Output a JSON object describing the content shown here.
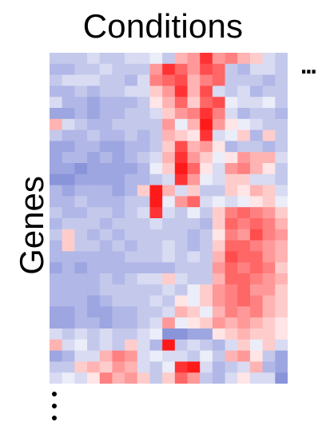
{
  "chart_data": {
    "type": "heatmap",
    "title": "Conditions",
    "xlabel": "",
    "ylabel": "Genes",
    "x_continuation": "...",
    "y_continuation": "⋮",
    "colormap": {
      "low": "#3b4cc0",
      "mid": "#ffffff",
      "high": "#ff0000"
    },
    "value_range": [
      -1,
      1
    ],
    "n_rows": 30,
    "n_cols": 19,
    "values": [
      [
        -0.3,
        -0.3,
        -0.3,
        -0.2,
        -0.3,
        -0.3,
        -0.2,
        -0.2,
        -0.1,
        -0.3,
        0.3,
        0.4,
        0.8,
        0.4,
        0.5,
        0.3,
        0.2,
        -0.2,
        -0.3
      ],
      [
        -0.4,
        -0.4,
        -0.3,
        -0.3,
        -0.2,
        -0.3,
        -0.3,
        -0.3,
        0.4,
        0.8,
        0.6,
        0.4,
        0.7,
        0.6,
        -0.3,
        -0.4,
        -0.2,
        -0.2,
        -0.3
      ],
      [
        -0.3,
        -0.2,
        -0.2,
        -0.2,
        -0.3,
        -0.3,
        -0.4,
        -0.2,
        0.5,
        0.6,
        0.7,
        0.3,
        0.5,
        0.6,
        -0.3,
        -0.3,
        -0.3,
        -0.4,
        -0.3
      ],
      [
        -0.4,
        -0.4,
        -0.3,
        -0.4,
        -0.3,
        -0.3,
        -0.2,
        -0.2,
        0.2,
        0.4,
        0.8,
        0.3,
        0.7,
        -0.2,
        -0.3,
        -0.2,
        -0.4,
        -0.3,
        -0.3
      ],
      [
        -0.2,
        -0.4,
        -0.4,
        -0.5,
        -0.4,
        -0.4,
        -0.4,
        -0.3,
        0.1,
        0.3,
        0.6,
        0.2,
        0.6,
        0.7,
        -0.1,
        -0.2,
        -0.2,
        -0.1,
        -0.3
      ],
      [
        -0.5,
        -0.5,
        -0.4,
        -0.5,
        -0.4,
        -0.4,
        -0.3,
        -0.3,
        -0.2,
        0.2,
        0.4,
        0.5,
        0.8,
        0.5,
        -0.2,
        -0.4,
        -0.3,
        -0.3,
        -0.4
      ],
      [
        0.3,
        -0.2,
        -0.3,
        -0.4,
        -0.4,
        -0.3,
        -0.3,
        -0.3,
        -0.3,
        0.4,
        -0.1,
        0.3,
        0.9,
        0.4,
        0.1,
        -0.1,
        -0.2,
        -0.3,
        -0.3
      ],
      [
        -0.3,
        -0.4,
        -0.4,
        -0.3,
        -0.4,
        -0.4,
        -0.3,
        -0.4,
        -0.3,
        0.3,
        0.2,
        0.1,
        0.8,
        -0.2,
        -0.1,
        0.2,
        -0.4,
        0.2,
        -0.3
      ],
      [
        -0.5,
        -0.5,
        -0.4,
        -0.4,
        -0.5,
        -0.5,
        -0.4,
        -0.4,
        -0.3,
        0.2,
        0.7,
        0.3,
        0.4,
        0.1,
        -0.4,
        -0.3,
        -0.3,
        -0.4,
        -0.3
      ],
      [
        -0.5,
        -0.4,
        -0.4,
        -0.5,
        -0.4,
        -0.5,
        -0.4,
        -0.3,
        -0.2,
        0.3,
        0.8,
        0.4,
        0.2,
        -0.1,
        0.1,
        0.4,
        0.3,
        0.3,
        -0.2
      ],
      [
        -0.5,
        -0.5,
        -0.6,
        -0.5,
        -0.5,
        -0.5,
        -0.5,
        -0.4,
        -0.1,
        0.2,
        0.9,
        0.6,
        0.1,
        -0.2,
        0.4,
        0.5,
        0.3,
        0.1,
        -0.3
      ],
      [
        -0.6,
        -0.6,
        -0.5,
        -0.5,
        -0.5,
        -0.5,
        -0.4,
        -0.4,
        -0.3,
        -0.2,
        0.8,
        0.4,
        -0.1,
        -0.2,
        0.2,
        0.2,
        -0.2,
        -0.2,
        -0.3
      ],
      [
        -0.4,
        -0.5,
        -0.4,
        -0.4,
        -0.4,
        -0.5,
        -0.4,
        0.2,
        0.9,
        0.3,
        -0.2,
        0.2,
        -0.3,
        -0.3,
        0.2,
        0.1,
        0.3,
        0.2,
        -0.2
      ],
      [
        -0.4,
        -0.4,
        -0.3,
        -0.4,
        -0.4,
        -0.4,
        -0.3,
        -0.3,
        0.9,
        -0.1,
        0.4,
        0.6,
        -0.2,
        -0.1,
        -0.2,
        -0.1,
        0.1,
        0.2,
        -0.1
      ],
      [
        -0.3,
        -0.4,
        -0.4,
        -0.3,
        -0.3,
        -0.4,
        -0.3,
        -0.2,
        0.8,
        -0.2,
        -0.3,
        -0.1,
        -0.3,
        0.2,
        0.5,
        0.6,
        0.5,
        0.4,
        0.2
      ],
      [
        -0.4,
        -0.3,
        -0.3,
        -0.3,
        -0.4,
        -0.3,
        -0.3,
        -0.3,
        -0.2,
        -0.3,
        -0.3,
        -0.3,
        -0.4,
        0.2,
        0.6,
        0.5,
        0.6,
        0.5,
        0.3
      ],
      [
        -0.3,
        0.2,
        -0.3,
        -0.4,
        -0.3,
        -0.4,
        -0.3,
        -0.3,
        -0.3,
        -0.3,
        -0.3,
        -0.4,
        -0.3,
        0.1,
        0.5,
        0.4,
        0.7,
        0.5,
        0.4
      ],
      [
        -0.4,
        0.2,
        -0.3,
        -0.3,
        -0.4,
        -0.3,
        -0.4,
        -0.3,
        -0.3,
        -0.2,
        -0.3,
        -0.4,
        -0.3,
        0.2,
        0.6,
        0.6,
        0.5,
        0.4,
        0.3
      ],
      [
        -0.4,
        -0.4,
        -0.4,
        -0.4,
        -0.4,
        -0.4,
        -0.3,
        -0.3,
        -0.3,
        -0.2,
        -0.3,
        -0.2,
        -0.3,
        0.3,
        0.7,
        0.6,
        0.6,
        0.4,
        0.3
      ],
      [
        -0.5,
        -0.4,
        -0.5,
        -0.4,
        -0.4,
        -0.4,
        -0.4,
        -0.4,
        -0.4,
        -0.4,
        -0.3,
        -0.3,
        -0.3,
        0.4,
        0.6,
        0.5,
        0.6,
        0.5,
        0.2
      ],
      [
        -0.4,
        -0.4,
        -0.4,
        -0.4,
        -0.3,
        -0.4,
        -0.3,
        -0.2,
        -0.2,
        0.2,
        -0.2,
        -0.3,
        -0.3,
        0.3,
        0.6,
        0.6,
        0.5,
        0.4,
        0.3
      ],
      [
        -0.4,
        -0.4,
        -0.4,
        -0.4,
        -0.3,
        -0.3,
        -0.3,
        -0.3,
        -0.3,
        -0.2,
        -0.3,
        -0.1,
        0.2,
        0.4,
        0.5,
        0.6,
        0.4,
        0.4,
        0.2
      ],
      [
        -0.4,
        -0.4,
        -0.4,
        -0.5,
        -0.4,
        -0.3,
        -0.3,
        -0.3,
        -0.2,
        -0.3,
        0.1,
        -0.1,
        0.2,
        0.4,
        0.5,
        0.6,
        0.5,
        0.3,
        0.2
      ],
      [
        -0.5,
        -0.5,
        -0.4,
        -0.5,
        -0.5,
        -0.4,
        -0.4,
        -0.3,
        -0.3,
        -0.2,
        0.3,
        0.2,
        -0.1,
        0.3,
        0.5,
        0.4,
        0.5,
        0.3,
        0.2
      ],
      [
        -0.5,
        -0.5,
        -0.4,
        -0.4,
        -0.5,
        -0.4,
        -0.4,
        -0.3,
        -0.2,
        0.4,
        -0.1,
        0.1,
        0.2,
        0.4,
        0.3,
        0.4,
        0.3,
        0.2,
        0.1
      ],
      [
        -0.2,
        -0.3,
        -0.2,
        -0.3,
        -0.2,
        -0.3,
        -0.3,
        -0.2,
        -0.1,
        -0.6,
        -0.6,
        -0.5,
        -0.5,
        0.1,
        0.2,
        0.3,
        0.2,
        0.2,
        0.1
      ],
      [
        0.3,
        -0.2,
        -0.1,
        -0.3,
        -0.2,
        -0.3,
        0.2,
        -0.2,
        -0.4,
        0.9,
        -0.3,
        -0.2,
        -0.3,
        -0.4,
        -0.2,
        0.2,
        -0.1,
        0.2,
        -0.2
      ],
      [
        -0.5,
        -0.4,
        -0.2,
        -0.2,
        0.3,
        0.5,
        0.4,
        -0.2,
        -0.1,
        -0.2,
        -0.2,
        -0.3,
        -0.1,
        -0.3,
        0.3,
        0.4,
        0.1,
        -0.3,
        -0.5
      ],
      [
        -0.3,
        -0.3,
        0.2,
        0.3,
        0.2,
        0.4,
        0.3,
        -0.2,
        -0.3,
        -0.1,
        0.8,
        0.9,
        -0.2,
        -0.4,
        -0.3,
        -0.2,
        0.3,
        -0.4,
        -0.5
      ],
      [
        -0.2,
        -0.1,
        -0.2,
        0.1,
        0.5,
        0.3,
        0.4,
        0.2,
        -0.3,
        0.2,
        0.6,
        0.4,
        -0.3,
        -0.4,
        -0.2,
        0.1,
        -0.2,
        -0.2,
        -0.6
      ]
    ]
  }
}
